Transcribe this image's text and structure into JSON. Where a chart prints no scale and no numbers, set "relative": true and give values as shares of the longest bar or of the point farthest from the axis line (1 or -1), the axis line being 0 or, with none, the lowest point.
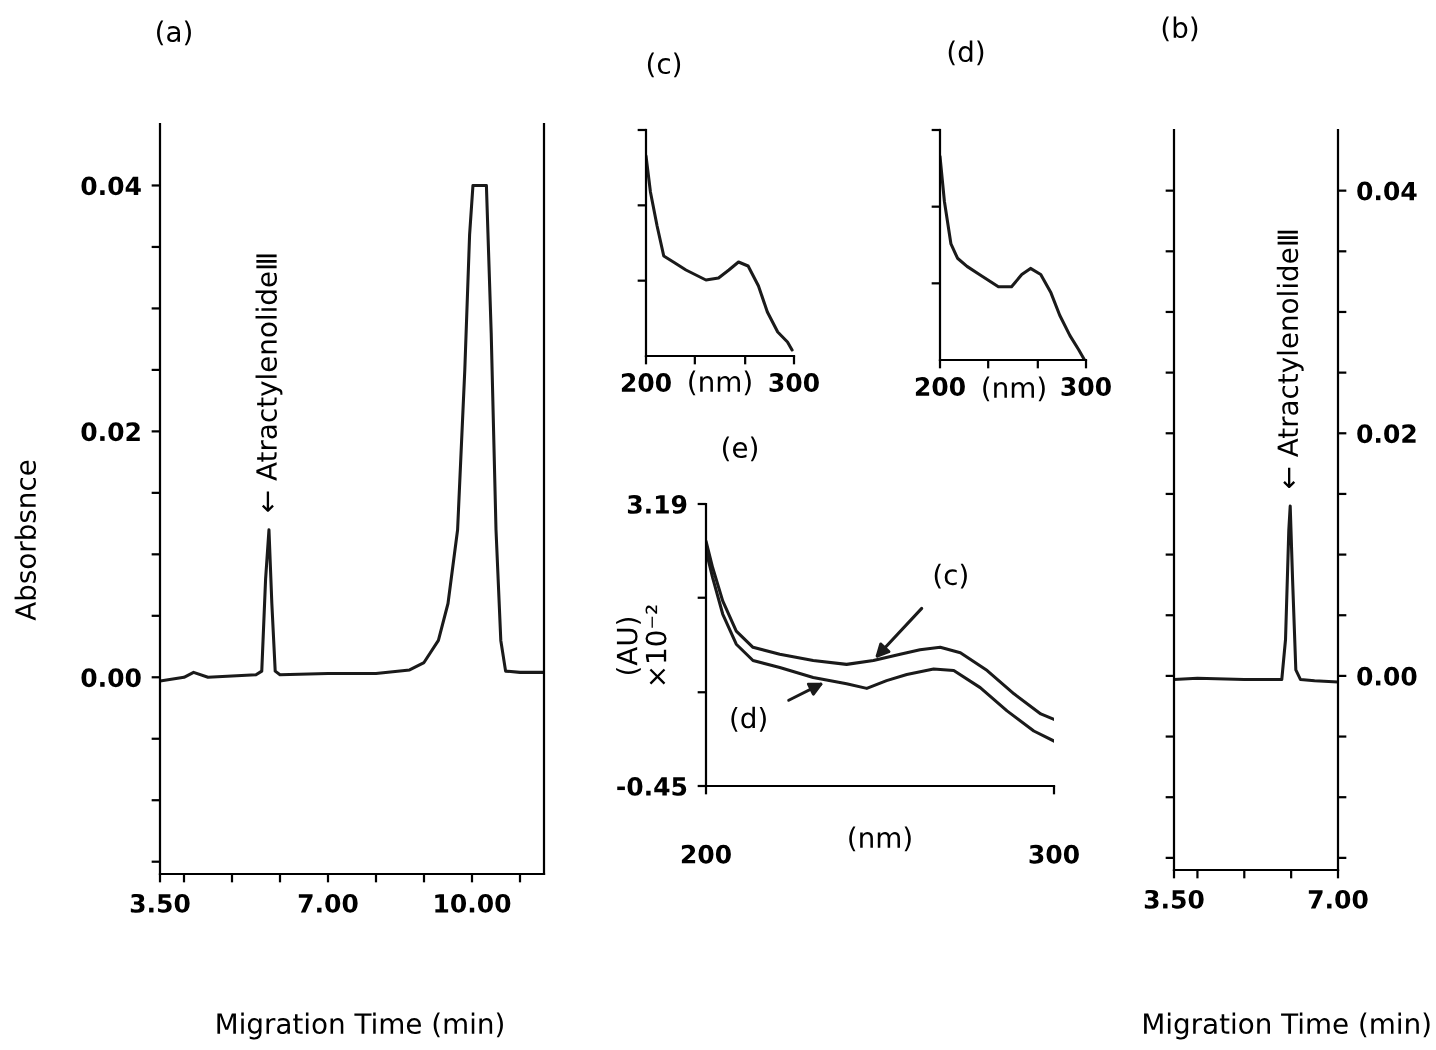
{
  "chart_data": [
    {
      "type": "line",
      "title": "(a)",
      "xlabel": "Migration Time (min)",
      "ylabel": "Absorbsnce",
      "x": [
        3.5,
        4.0,
        4.2,
        4.5,
        5.0,
        5.5,
        5.62,
        5.7,
        5.77,
        5.83,
        5.9,
        6.0,
        7.0,
        8.0,
        8.7,
        9.0,
        9.3,
        9.5,
        9.7,
        9.85,
        9.95,
        10.02,
        10.3,
        10.4,
        10.5,
        10.6,
        10.7,
        11.0,
        11.5
      ],
      "series": [
        {
          "color": "#1a1a1a",
          "values": [
            -0.0003,
            0.0,
            0.0004,
            0.0,
            0.0001,
            0.0002,
            0.0005,
            0.008,
            0.012,
            0.006,
            0.0005,
            0.0002,
            0.0003,
            0.0003,
            0.0006,
            0.0012,
            0.003,
            0.006,
            0.012,
            0.025,
            0.036,
            0.04,
            0.04,
            0.028,
            0.012,
            0.003,
            0.0005,
            0.0004,
            0.0004
          ]
        }
      ],
      "xlim": [
        3.5,
        11.5
      ],
      "xticks": [
        {
          "value": 3.5,
          "label": "3.50"
        },
        {
          "value": 4,
          "label": null
        },
        {
          "value": 5,
          "label": null
        },
        {
          "value": 6,
          "label": null
        },
        {
          "value": 7,
          "label": "7.00"
        },
        {
          "value": 8,
          "label": null
        },
        {
          "value": 9,
          "label": null
        },
        {
          "value": 10,
          "label": "10.00"
        },
        {
          "value": 11,
          "label": null
        }
      ],
      "ylim": [
        -0.016,
        0.045
      ],
      "yticks": [
        {
          "value": -0.015,
          "label": null
        },
        {
          "value": -0.01,
          "label": null
        },
        {
          "value": -0.005,
          "label": null
        },
        {
          "value": 0,
          "label": "0.00"
        },
        {
          "value": 0.005,
          "label": null
        },
        {
          "value": 0.01,
          "label": null
        },
        {
          "value": 0.015,
          "label": null
        },
        0.02,
        {
          "value": 0.025,
          "label": null
        },
        {
          "value": 0.03,
          "label": null
        },
        {
          "value": 0.035,
          "label": null
        },
        0.04
      ],
      "annotations": [
        {
          "text": "← AtractylenolideⅢ",
          "x": 5.77,
          "y": 0.012
        }
      ]
    },
    {
      "type": "line",
      "title": "(c)",
      "xlabel": "(nm)",
      "relative": true,
      "tick_labels": "x",
      "x": [
        200,
        203,
        207.5,
        212,
        218.5,
        227,
        240.5,
        249,
        256,
        262.5,
        269,
        276,
        282,
        289,
        295.6,
        298.7
      ],
      "series": [
        {
          "color": "#1a1a1a",
          "values": [
            1.0,
            0.82,
            0.65,
            0.5,
            0.47,
            0.43,
            0.38,
            0.39,
            0.43,
            0.47,
            0.45,
            0.35,
            0.22,
            0.12,
            0.07,
            0.03
          ]
        }
      ],
      "xlim": [
        200,
        300
      ],
      "xticks": [
        200,
        {
          "value": 233,
          "label": null
        },
        {
          "value": 267,
          "label": null
        },
        300
      ]
    },
    {
      "type": "line",
      "title": "(d)",
      "xlabel": "(nm)",
      "relative": true,
      "tick_labels": "x",
      "x": [
        200,
        203,
        207.5,
        212,
        218.5,
        227,
        240,
        249,
        256,
        262,
        269,
        276,
        282,
        289,
        295,
        299
      ],
      "series": [
        {
          "color": "#1a1a1a",
          "values": [
            1.0,
            0.78,
            0.57,
            0.5,
            0.46,
            0.42,
            0.36,
            0.36,
            0.42,
            0.45,
            0.42,
            0.33,
            0.22,
            0.12,
            0.05,
            0.0
          ]
        }
      ],
      "xlim": [
        200,
        300
      ],
      "xticks": [
        200,
        {
          "value": 233,
          "label": null
        },
        {
          "value": 267,
          "label": null
        },
        300
      ]
    },
    {
      "type": "line",
      "title": "(e)",
      "xlabel": "(nm)",
      "ylabel": "(AU)\n×10⁻²",
      "series": [
        {
          "color": "#1a1a1a",
          "x": [
            200,
            201.9,
            204.8,
            208.7,
            213.5,
            221.2,
            230.8,
            240.4,
            248.1,
            255.8,
            261.5,
            267.3,
            273.1,
            280.8,
            288.5,
            296.2,
            300
          ],
          "values": [
            2.71,
            2.37,
            1.94,
            1.55,
            1.34,
            1.25,
            1.17,
            1.12,
            1.17,
            1.25,
            1.31,
            1.34,
            1.27,
            1.04,
            0.74,
            0.48,
            0.41
          ]
        },
        {
          "color": "#1a1a1a",
          "x": [
            200,
            201.9,
            204.8,
            208.7,
            213.5,
            221.2,
            230.8,
            240.4,
            246.2,
            251.9,
            257.7,
            265.4,
            271.2,
            278.8,
            286.5,
            294.2,
            300
          ],
          "values": [
            2.59,
            2.24,
            1.77,
            1.38,
            1.17,
            1.08,
            0.95,
            0.87,
            0.81,
            0.91,
            0.99,
            1.06,
            1.04,
            0.82,
            0.52,
            0.26,
            0.13
          ]
        }
      ],
      "xlim": [
        200,
        300
      ],
      "xticks": [
        200,
        300
      ],
      "ylim": [
        -0.45,
        3.19
      ],
      "yticks": [
        -0.45,
        {
          "value": 0.76,
          "label": null
        },
        {
          "value": 1.98,
          "label": null
        },
        3.19
      ],
      "annotations": [
        {
          "text": "(c)",
          "x": 248,
          "y": 1.17
        },
        {
          "text": "(d)",
          "x": 234.6,
          "y": 0.9
        }
      ]
    },
    {
      "type": "line",
      "title": "(b)",
      "xlabel": "Migration Time (min)",
      "x": [
        3.5,
        4.0,
        5.0,
        5.8,
        5.88,
        5.95,
        5.98,
        6.03,
        6.1,
        6.2,
        6.5,
        7.0
      ],
      "series": [
        {
          "color": "#1a1a1a",
          "values": [
            -0.0003,
            -0.0002,
            -0.0003,
            -0.0003,
            0.003,
            0.012,
            0.014,
            0.008,
            0.0005,
            -0.0003,
            -0.0004,
            -0.0005
          ]
        }
      ],
      "xlim": [
        3.5,
        7.0
      ],
      "xticks": [
        {
          "value": 3.5,
          "label": "3.50"
        },
        {
          "value": 4,
          "label": null
        },
        {
          "value": 5,
          "label": null
        },
        {
          "value": 6,
          "label": null
        },
        {
          "value": 7,
          "label": "7.00"
        }
      ],
      "ylim": [
        -0.016,
        0.045
      ],
      "yticks": [
        {
          "value": -0.015,
          "label": null
        },
        {
          "value": -0.01,
          "label": null
        },
        {
          "value": -0.005,
          "label": null
        },
        {
          "value": 0,
          "label": "0.00"
        },
        {
          "value": 0.005,
          "label": null
        },
        {
          "value": 0.01,
          "label": null
        },
        {
          "value": 0.015,
          "label": null
        },
        0.02,
        {
          "value": 0.025,
          "label": null
        },
        {
          "value": 0.03,
          "label": null
        },
        {
          "value": 0.035,
          "label": null
        },
        0.04
      ],
      "annotations": [
        {
          "text": "← AtractylenolideⅢ",
          "x": 5.98,
          "y": 0.014
        }
      ]
    }
  ]
}
